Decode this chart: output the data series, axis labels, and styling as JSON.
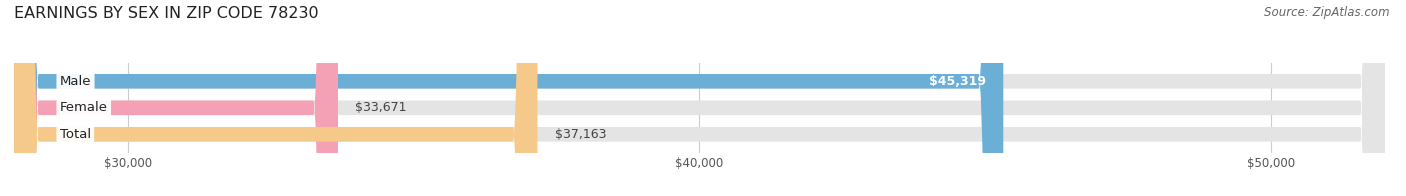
{
  "title": "EARNINGS BY SEX IN ZIP CODE 78230",
  "source": "Source: ZipAtlas.com",
  "categories": [
    "Male",
    "Female",
    "Total"
  ],
  "values": [
    45319,
    33671,
    37163
  ],
  "bar_colors": [
    "#6baed6",
    "#f4a0b5",
    "#f5c98a"
  ],
  "xmin": 28000,
  "xmax": 52000,
  "xticks": [
    30000,
    40000,
    50000
  ],
  "xtick_labels": [
    "$30,000",
    "$40,000",
    "$50,000"
  ],
  "bar_height": 0.55,
  "figsize": [
    14.06,
    1.96
  ],
  "dpi": 100,
  "title_fontsize": 11.5,
  "source_fontsize": 8.5,
  "tick_fontsize": 8.5,
  "label_fontsize": 9.5,
  "value_fontsize": 9,
  "bg_color": "#ffffff",
  "grid_color": "#cccccc",
  "bar_bg_color": "#e4e4e4"
}
